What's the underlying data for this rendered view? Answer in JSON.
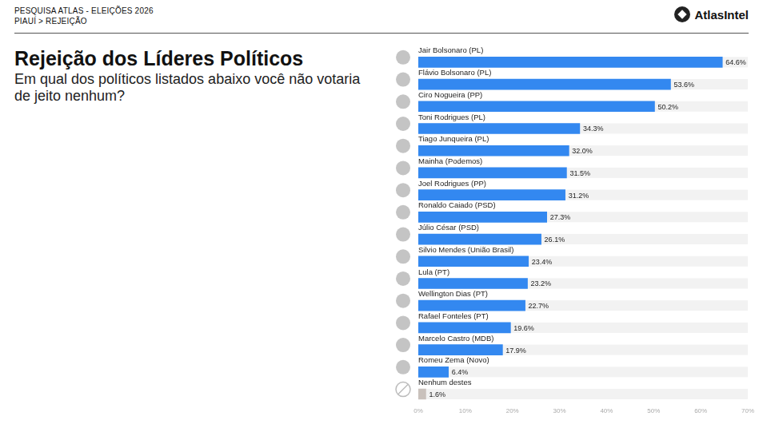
{
  "header": {
    "survey": "PESQUISA ATLAS - ELEIÇÕES 2026",
    "section": "PIAUÍ > REJEIÇÃO",
    "brand": "AtlasIntel"
  },
  "chart_data": {
    "type": "bar",
    "orientation": "horizontal",
    "title": "Rejeição dos Líderes Políticos",
    "subtitle": "Em qual dos políticos listados abaixo você não votaria de jeito nenhum?",
    "categories": [
      "Jair Bolsonaro (PL)",
      "Flávio Bolsonaro (PL)",
      "Ciro Nogueira (PP)",
      "Toni Rodrigues (PL)",
      "Tiago Junqueira (PL)",
      "Mainha (Podemos)",
      "Joel Rodrigues (PP)",
      "Ronaldo Caiado (PSD)",
      "Júlio César (PSD)",
      "Silvio Mendes (União Brasil)",
      "Lula (PT)",
      "Wellington Dias (PT)",
      "Rafael Fonteles (PT)",
      "Marcelo Castro (MDB)",
      "Romeu Zema (Novo)",
      "Nenhum destes"
    ],
    "values": [
      64.6,
      53.6,
      50.2,
      34.3,
      32.0,
      31.5,
      31.2,
      27.3,
      26.1,
      23.4,
      23.2,
      22.7,
      19.6,
      17.9,
      6.4,
      1.6
    ],
    "value_labels": [
      "64.6%",
      "53.6%",
      "50.2%",
      "34.3%",
      "32.0%",
      "31.5%",
      "31.2%",
      "27.3%",
      "26.1%",
      "23.4%",
      "23.2%",
      "22.7%",
      "19.6%",
      "17.9%",
      "6.4%",
      "1.6%"
    ],
    "colors": [
      "#3388f0",
      "#3388f0",
      "#3388f0",
      "#3388f0",
      "#3388f0",
      "#3388f0",
      "#3388f0",
      "#3388f0",
      "#3388f0",
      "#3388f0",
      "#3388f0",
      "#3388f0",
      "#3388f0",
      "#3388f0",
      "#3388f0",
      "#c9c1bc"
    ],
    "xlim": [
      0,
      70
    ],
    "xticks": [
      {
        "value": 0,
        "label": "0%"
      },
      {
        "value": 10,
        "label": "10%"
      },
      {
        "value": 20,
        "label": "20%"
      },
      {
        "value": 30,
        "label": "30%"
      },
      {
        "value": 40,
        "label": "40%"
      },
      {
        "value": 50,
        "label": "50%"
      },
      {
        "value": 60,
        "label": "60%"
      },
      {
        "value": 70,
        "label": "70%"
      }
    ],
    "grid": false,
    "data_labels": true
  }
}
